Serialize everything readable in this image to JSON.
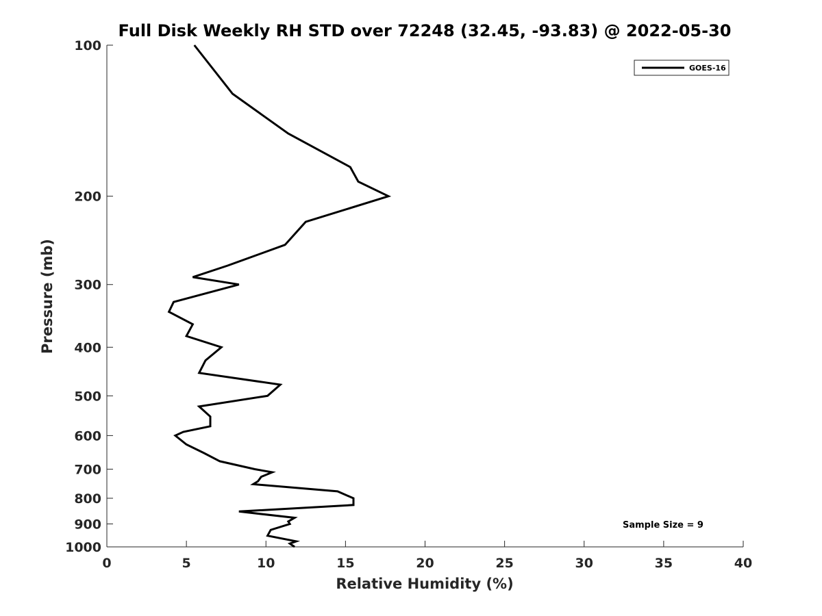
{
  "chart_data": {
    "type": "line",
    "title": "Full Disk Weekly RH STD over 72248 (32.45, -93.83) @ 2022-05-30",
    "xlabel": "Relative Humidity (%)",
    "ylabel": "Pressure (mb)",
    "xlim": [
      0,
      40
    ],
    "ylim": [
      100,
      1000
    ],
    "yscale": "log",
    "y_reversed": true,
    "xticks": [
      0,
      5,
      10,
      15,
      20,
      25,
      30,
      35,
      40
    ],
    "yticks": [
      100,
      200,
      300,
      400,
      500,
      600,
      700,
      800,
      900,
      1000
    ],
    "grid": false,
    "legend": "top-right",
    "annotation": "Sample Size = 9",
    "series": [
      {
        "name": "GOES-16",
        "color": "#000000",
        "points": [
          [
            5.5,
            100
          ],
          [
            7.9,
            125
          ],
          [
            11.4,
            150
          ],
          [
            15.3,
            175
          ],
          [
            15.8,
            187
          ],
          [
            17.7,
            200
          ],
          [
            12.5,
            225
          ],
          [
            11.2,
            250
          ],
          [
            7.6,
            275
          ],
          [
            5.4,
            290
          ],
          [
            8.3,
            300
          ],
          [
            4.2,
            325
          ],
          [
            3.9,
            340
          ],
          [
            5.4,
            360
          ],
          [
            5.0,
            380
          ],
          [
            7.2,
            400
          ],
          [
            6.2,
            425
          ],
          [
            5.8,
            450
          ],
          [
            10.9,
            475
          ],
          [
            10.1,
            500
          ],
          [
            5.8,
            525
          ],
          [
            6.5,
            550
          ],
          [
            6.5,
            575
          ],
          [
            4.8,
            590
          ],
          [
            4.3,
            600
          ],
          [
            5.0,
            625
          ],
          [
            6.1,
            650
          ],
          [
            7.1,
            675
          ],
          [
            9.3,
            700
          ],
          [
            10.4,
            710
          ],
          [
            9.7,
            725
          ],
          [
            9.5,
            740
          ],
          [
            9.2,
            750
          ],
          [
            14.5,
            775
          ],
          [
            15.5,
            800
          ],
          [
            15.5,
            825
          ],
          [
            8.3,
            850
          ],
          [
            11.8,
            875
          ],
          [
            11.4,
            890
          ],
          [
            11.5,
            900
          ],
          [
            10.3,
            925
          ],
          [
            10.1,
            950
          ],
          [
            11.9,
            975
          ],
          [
            11.5,
            985
          ],
          [
            11.8,
            1000
          ]
        ]
      }
    ]
  }
}
